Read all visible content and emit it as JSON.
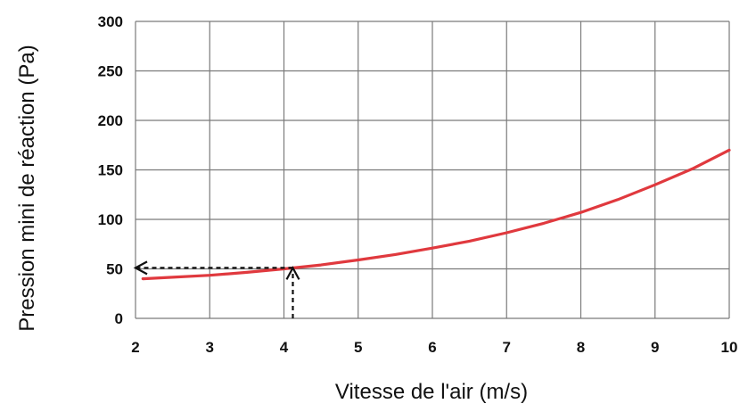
{
  "chart_data": {
    "type": "line",
    "xlabel": "Vitesse de l'air (m/s)",
    "ylabel": "Pression mini de réaction (Pa)",
    "xlim": [
      2,
      10
    ],
    "ylim": [
      0,
      300
    ],
    "x_ticks": [
      2,
      3,
      4,
      5,
      6,
      7,
      8,
      9,
      10
    ],
    "y_ticks": [
      0,
      50,
      100,
      150,
      200,
      250,
      300
    ],
    "x_tick_labels": [
      "2",
      "3",
      "4",
      "5",
      "6",
      "7",
      "8",
      "9",
      "10"
    ],
    "y_tick_labels": [
      "0",
      "50",
      "100",
      "150",
      "200",
      "250",
      "300"
    ],
    "grid": true,
    "series": [
      {
        "color": "#e0393e",
        "x": [
          2.1,
          2.5,
          3,
          3.5,
          4,
          4.5,
          5,
          5.5,
          6,
          6.5,
          7,
          7.5,
          8,
          8.5,
          9,
          9.5,
          10
        ],
        "y": [
          40,
          41.5,
          43.5,
          46.5,
          50,
          54,
          59,
          64.5,
          71,
          78,
          86.5,
          96,
          107,
          120,
          135,
          151,
          170
        ]
      }
    ],
    "annotations": [
      {
        "type": "dashed-arrow-up",
        "color": "#111111",
        "from": [
          4.12,
          0
        ],
        "to": [
          4.12,
          51
        ]
      },
      {
        "type": "dashed-arrow-left",
        "color": "#111111",
        "from": [
          4.12,
          51
        ],
        "to": [
          2.0,
          51
        ]
      }
    ]
  }
}
